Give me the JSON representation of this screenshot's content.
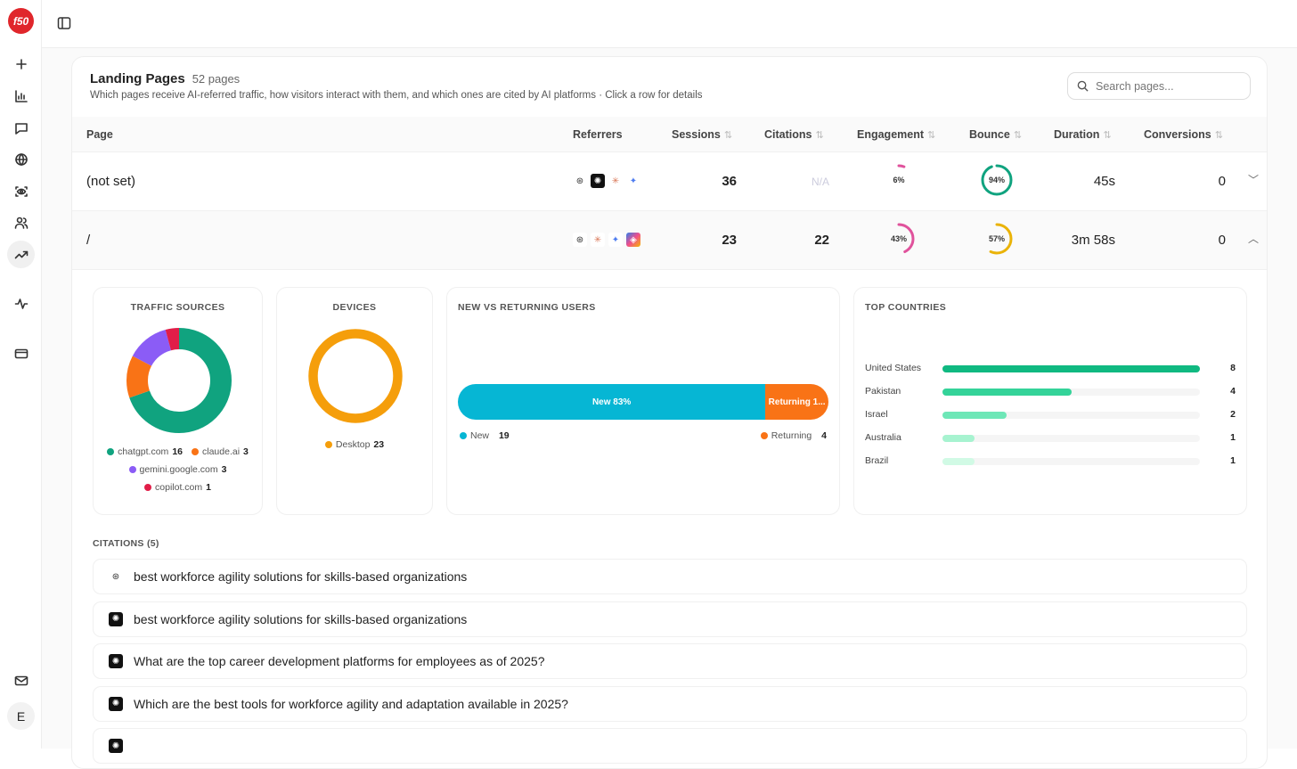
{
  "brand": {
    "logo_text": "f50",
    "color": "#e0262b"
  },
  "sidebar": {
    "items": [
      {
        "icon": "plus-icon"
      },
      {
        "icon": "bar-chart-icon"
      },
      {
        "icon": "message-icon"
      },
      {
        "icon": "globe-icon"
      },
      {
        "icon": "eye-scan-icon"
      },
      {
        "icon": "users-icon"
      },
      {
        "icon": "trending-up-icon",
        "active": true
      },
      {
        "icon": "activity-icon"
      },
      {
        "icon": "credit-card-icon"
      },
      {
        "icon": "mail-icon"
      }
    ],
    "avatar": "E"
  },
  "card": {
    "title": "Landing Pages",
    "count": "52 pages",
    "subtitle": "Which pages receive AI-referred traffic, how visitors interact with them, and which ones are cited by AI platforms · Click a row for details",
    "search_placeholder": "Search pages..."
  },
  "table": {
    "columns": [
      "Page",
      "Referrers",
      "Sessions",
      "Citations",
      "Engagement",
      "Bounce",
      "Duration",
      "Conversions"
    ],
    "rows": [
      {
        "page": "(not set)",
        "referrers": [
          "chatgpt",
          "perplexity",
          "claude",
          "gemini"
        ],
        "sessions": "36",
        "citations": "N/A",
        "engagement": 6,
        "engagement_label": "6%",
        "bounce": 94,
        "bounce_label": "94%",
        "duration": "45s",
        "conversions": "0",
        "expanded": false
      },
      {
        "page": "/",
        "referrers": [
          "chatgpt",
          "claude",
          "gemini",
          "copilot"
        ],
        "sessions": "23",
        "citations": "22",
        "engagement": 43,
        "engagement_label": "43%",
        "bounce": 57,
        "bounce_label": "57%",
        "duration": "3m 58s",
        "conversions": "0",
        "expanded": true
      }
    ]
  },
  "details": {
    "traffic_sources": {
      "title": "TRAFFIC SOURCES",
      "items": [
        {
          "name": "chatgpt.com",
          "value": 16,
          "color": "#10a37f"
        },
        {
          "name": "claude.ai",
          "value": 3,
          "color": "#f97316"
        },
        {
          "name": "gemini.google.com",
          "value": 3,
          "color": "#8b5cf6"
        },
        {
          "name": "copilot.com",
          "value": 1,
          "color": "#e11d48"
        }
      ]
    },
    "devices": {
      "title": "DEVICES",
      "items": [
        {
          "name": "Desktop",
          "value": 23,
          "color": "#f59e0b"
        }
      ]
    },
    "new_vs_returning": {
      "title": "NEW VS RETURNING USERS",
      "new_label": "New 83%",
      "returning_label": "Returning 1...",
      "new_pct": 83,
      "legend_new": "New",
      "new_value": "19",
      "legend_returning": "Returning",
      "returning_value": "4",
      "new_color": "#06b6d4",
      "returning_color": "#f97316"
    },
    "top_countries": {
      "title": "TOP COUNTRIES",
      "max": 8,
      "items": [
        {
          "name": "United States",
          "value": 8,
          "color": "#10b981"
        },
        {
          "name": "Pakistan",
          "value": 4,
          "color": "#34d399"
        },
        {
          "name": "Israel",
          "value": 2,
          "color": "#6ee7b7"
        },
        {
          "name": "Australia",
          "value": 1,
          "color": "#a7f3d0"
        },
        {
          "name": "Brazil",
          "value": 1,
          "color": "#d1fae5"
        }
      ]
    }
  },
  "citations": {
    "label": "CITATIONS (5)",
    "items": [
      {
        "source": "chatgpt",
        "text": "best workforce agility solutions for skills-based organizations"
      },
      {
        "source": "perplexity",
        "text": "best workforce agility solutions for skills-based organizations"
      },
      {
        "source": "perplexity",
        "text": "What are the top career development platforms for employees as of 2025?"
      },
      {
        "source": "perplexity",
        "text": "Which are the best tools for workforce agility and adaptation available in 2025?"
      },
      {
        "source": "perplexity",
        "text": ""
      }
    ]
  }
}
